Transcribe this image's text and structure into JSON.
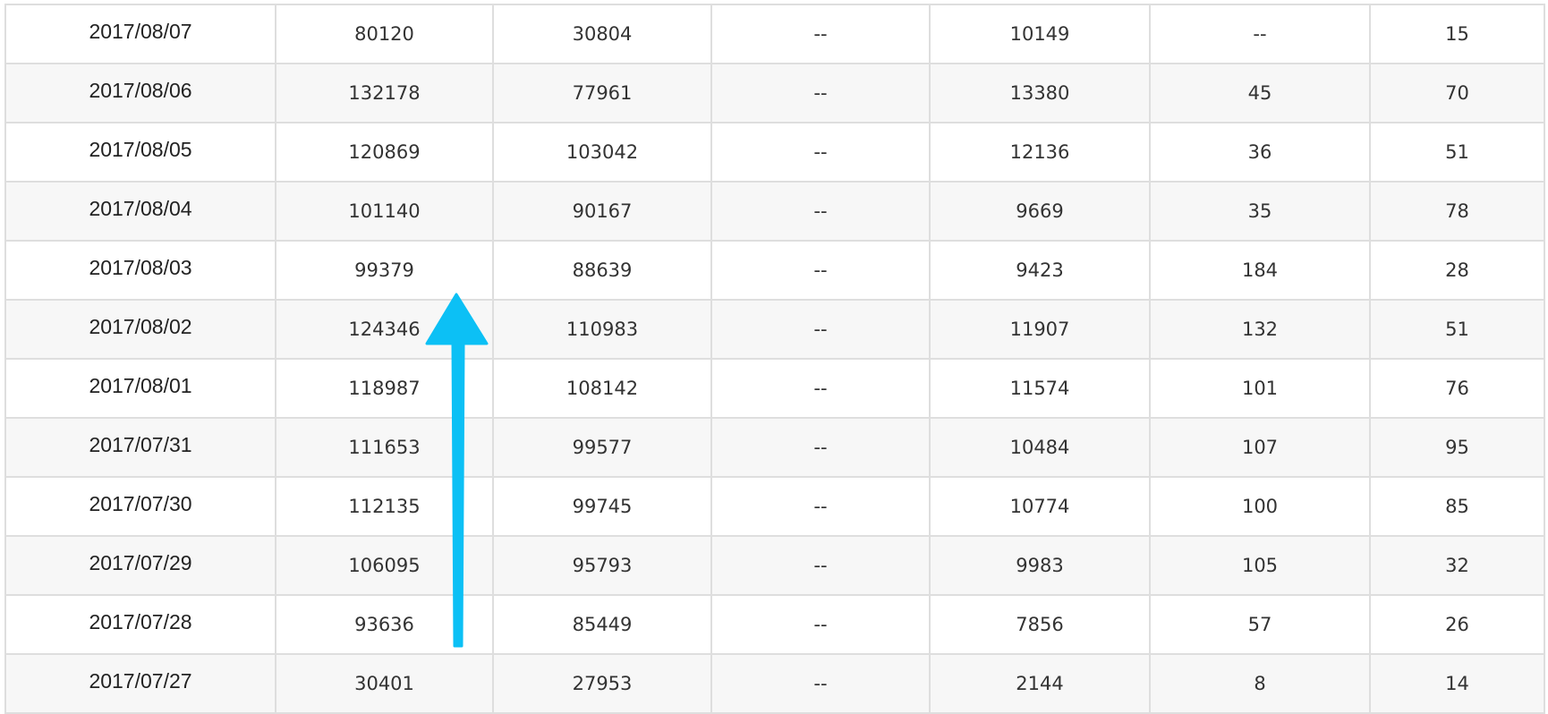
{
  "rows": [
    [
      "2017/08/07",
      "80120",
      "30804",
      "--",
      "10149",
      "--",
      "15"
    ],
    [
      "2017/08/06",
      "132178",
      "77961",
      "--",
      "13380",
      "45",
      "70"
    ],
    [
      "2017/08/05",
      "120869",
      "103042",
      "--",
      "12136",
      "36",
      "51"
    ],
    [
      "2017/08/04",
      "101140",
      "90167",
      "--",
      "9669",
      "35",
      "78"
    ],
    [
      "2017/08/03",
      "99379",
      "88639",
      "--",
      "9423",
      "184",
      "28"
    ],
    [
      "2017/08/02",
      "124346",
      "110983",
      "--",
      "11907",
      "132",
      "51"
    ],
    [
      "2017/08/01",
      "118987",
      "108142",
      "--",
      "11574",
      "101",
      "76"
    ],
    [
      "2017/07/31",
      "111653",
      "99577",
      "--",
      "10484",
      "107",
      "95"
    ],
    [
      "2017/07/30",
      "112135",
      "99745",
      "--",
      "10774",
      "100",
      "85"
    ],
    [
      "2017/07/29",
      "106095",
      "95793",
      "--",
      "9983",
      "105",
      "32"
    ],
    [
      "2017/07/28",
      "93636",
      "85449",
      "--",
      "7856",
      "57",
      "26"
    ],
    [
      "2017/07/27",
      "30401",
      "27953",
      "--",
      "2144",
      "8",
      "14"
    ]
  ],
  "annotation": {
    "icon": "arrow-up-icon",
    "color": "#0cc0f5"
  }
}
